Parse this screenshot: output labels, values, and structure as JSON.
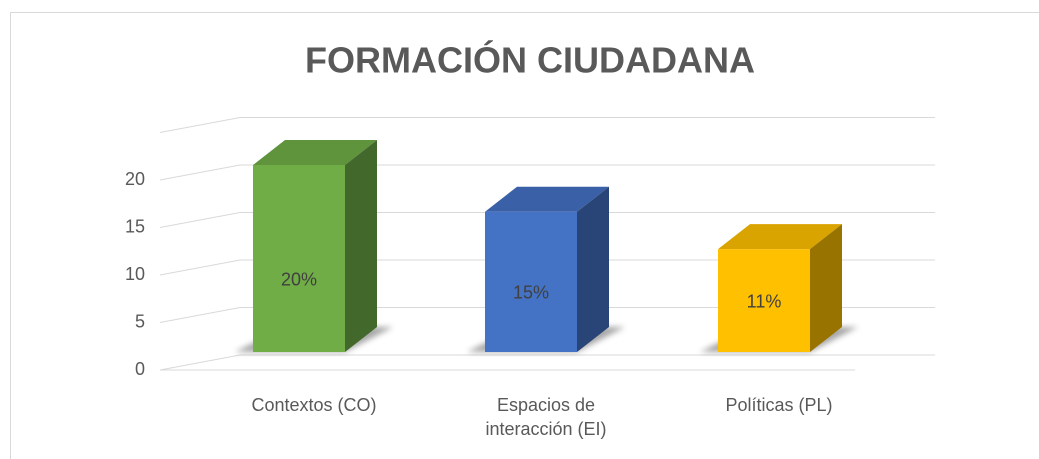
{
  "chart_data": {
    "type": "bar3d",
    "title": "FORMACIÓN CIUDADANA",
    "categories": [
      "Contextos (CO)",
      "Espacios de interacción (EI)",
      "Políticas (PL)"
    ],
    "values": [
      20,
      15,
      11
    ],
    "value_labels": [
      "20%",
      "15%",
      "11%"
    ],
    "colors": [
      "#70ad47",
      "#4472c4",
      "#ffc000"
    ],
    "ylim": [
      0,
      25
    ],
    "yticks": [
      0,
      5,
      10,
      15,
      20
    ],
    "grid": true
  }
}
